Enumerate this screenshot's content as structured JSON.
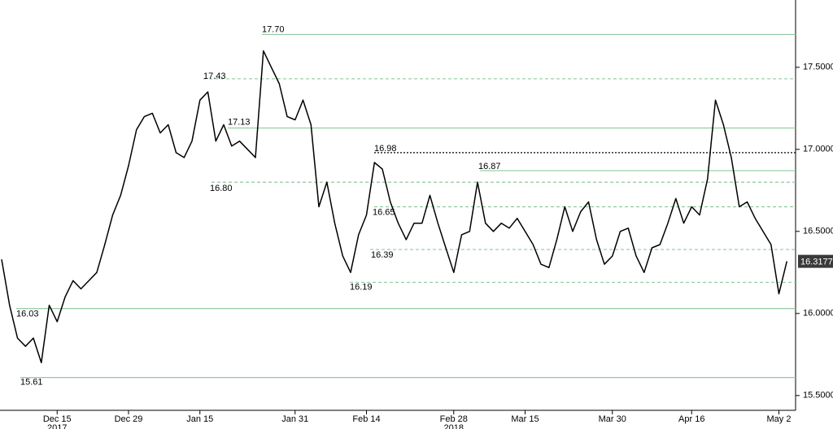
{
  "chart_data": {
    "type": "line",
    "categories": [
      null,
      null,
      null,
      null,
      null,
      null,
      null,
      "Dec 15",
      null,
      null,
      null,
      null,
      null,
      null,
      null,
      null,
      "Dec 29",
      null,
      null,
      null,
      null,
      null,
      null,
      null,
      null,
      "Jan 15",
      null,
      null,
      null,
      null,
      null,
      null,
      null,
      null,
      null,
      null,
      null,
      "Jan 31",
      null,
      null,
      null,
      null,
      null,
      null,
      null,
      null,
      "Feb 14",
      null,
      null,
      null,
      null,
      null,
      null,
      null,
      null,
      null,
      null,
      "Feb 28",
      null,
      null,
      null,
      null,
      null,
      null,
      null,
      null,
      "Mar 15",
      null,
      null,
      null,
      null,
      null,
      null,
      null,
      null,
      null,
      null,
      "Mar 30",
      null,
      null,
      null,
      null,
      null,
      null,
      null,
      null,
      null,
      "Apr 16",
      null,
      null,
      null,
      null,
      null,
      null,
      null,
      null,
      null,
      null,
      "May 2",
      null
    ],
    "years": [
      {
        "year": "2017",
        "under": "Dec 15"
      },
      {
        "year": "2018",
        "under": "Feb 28"
      }
    ],
    "series": [
      {
        "color": "#000000",
        "values": [
          16.33,
          16.05,
          15.85,
          15.8,
          15.85,
          15.7,
          16.05,
          15.95,
          16.1,
          16.2,
          16.15,
          16.2,
          16.25,
          16.42,
          16.6,
          16.72,
          16.9,
          17.12,
          17.2,
          17.22,
          17.1,
          17.15,
          16.98,
          16.95,
          17.05,
          17.3,
          17.35,
          17.05,
          17.15,
          17.02,
          17.05,
          17.0,
          16.95,
          17.6,
          17.5,
          17.4,
          17.2,
          17.18,
          17.3,
          17.15,
          16.65,
          16.8,
          16.55,
          16.35,
          16.25,
          16.48,
          16.6,
          16.92,
          16.88,
          16.68,
          16.55,
          16.45,
          16.55,
          16.55,
          16.72,
          16.55,
          16.4,
          16.25,
          16.48,
          16.5,
          16.8,
          16.55,
          16.5,
          16.55,
          16.52,
          16.58,
          16.5,
          16.42,
          16.3,
          16.28,
          16.45,
          16.65,
          16.5,
          16.62,
          16.68,
          16.45,
          16.3,
          16.35,
          16.5,
          16.52,
          16.35,
          16.25,
          16.4,
          16.42,
          16.55,
          16.7,
          16.55,
          16.65,
          16.6,
          16.82,
          17.3,
          17.15,
          16.95,
          16.65,
          16.68,
          16.58,
          16.5,
          16.42,
          16.12,
          16.3177
        ]
      }
    ],
    "ylim": [
      15.41,
      17.91
    ],
    "yticks": [
      {
        "value": 15.5,
        "label": "15.5000"
      },
      {
        "value": 16,
        "label": "16.0000"
      },
      {
        "value": 16.5,
        "label": "16.5000"
      },
      {
        "value": 17,
        "label": "17.0000"
      },
      {
        "value": 17.5,
        "label": "17.5000"
      }
    ],
    "last": 16.3177,
    "level_color": "#8fc9a0",
    "levels": [
      {
        "value": 17.7,
        "label": "17.70",
        "style": "solid"
      },
      {
        "value": 17.43,
        "label": "17.43",
        "style": "dashed"
      },
      {
        "value": 17.13,
        "label": "17.13",
        "style": "solid"
      },
      {
        "value": 16.98,
        "label": "16.98",
        "style": "dotted"
      },
      {
        "value": 16.87,
        "label": "16.87",
        "style": "solid"
      },
      {
        "value": 16.8,
        "label": "16.80",
        "style": "dashed"
      },
      {
        "value": 16.65,
        "label": "16.65",
        "style": "dashed"
      },
      {
        "value": 16.39,
        "label": "16.39",
        "style": "dashed"
      },
      {
        "value": 16.19,
        "label": "16.19",
        "style": "dashed"
      },
      {
        "value": 16.03,
        "label": "16.03",
        "style": "solid"
      },
      {
        "value": 15.61,
        "label": "15.61",
        "style": "solid"
      }
    ]
  }
}
